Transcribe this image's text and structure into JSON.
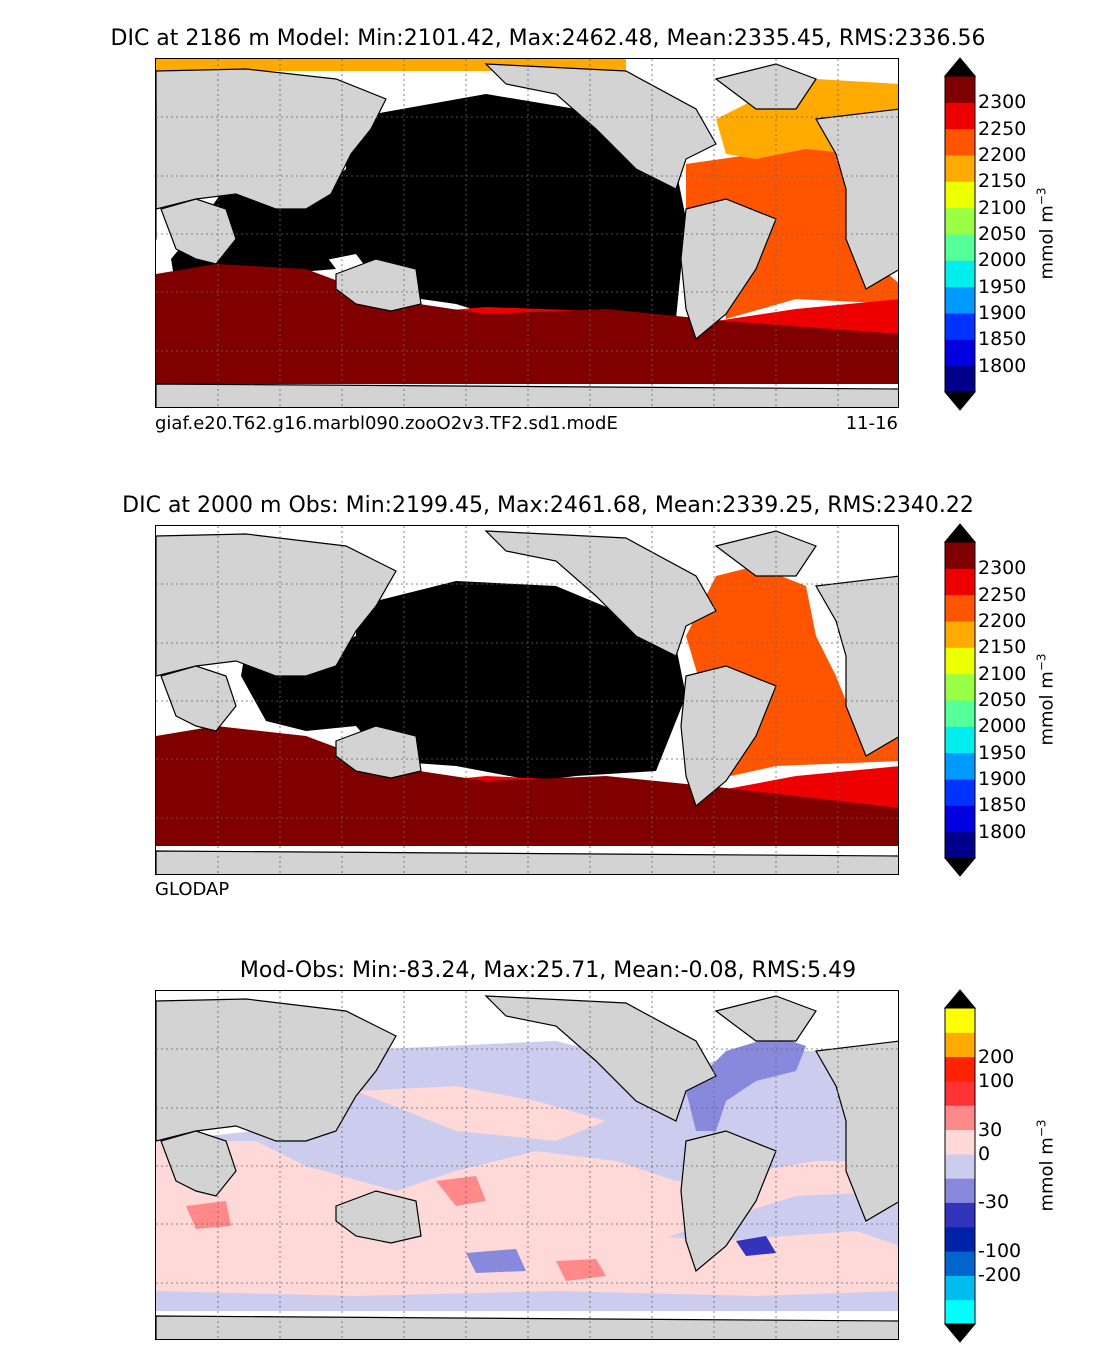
{
  "panels": [
    {
      "title": "DIC at 2186 m Model: Min:2101.42, Max:2462.48, Mean:2335.45, RMS:2336.56",
      "caption_left": "giaf.e20.T62.g16.marbl090.zooO2v3.TF2.sd1.modE",
      "caption_right": "11-16",
      "colorbar": {
        "unit": "mmol m^-3",
        "ticks": [
          "1800",
          "1850",
          "1900",
          "1950",
          "2000",
          "2050",
          "2100",
          "2150",
          "2200",
          "2250",
          "2300"
        ],
        "colors": [
          "#00008b",
          "#0000e0",
          "#0033ff",
          "#0099ff",
          "#00eeee",
          "#55ff99",
          "#99ff44",
          "#eeff00",
          "#ffaa00",
          "#ff5500",
          "#ee0000",
          "#800000"
        ],
        "under": "#000000",
        "over": "#000000"
      }
    },
    {
      "title": "DIC at 2000 m Obs: Min:2199.45, Max:2461.68, Mean:2339.25, RMS:2340.22",
      "caption_left": "GLODAP",
      "caption_right": "",
      "colorbar": {
        "unit": "mmol m^-3",
        "ticks": [
          "1800",
          "1850",
          "1900",
          "1950",
          "2000",
          "2050",
          "2100",
          "2150",
          "2200",
          "2250",
          "2300"
        ],
        "colors": [
          "#00008b",
          "#0000e0",
          "#0033ff",
          "#0099ff",
          "#00eeee",
          "#55ff99",
          "#99ff44",
          "#eeff00",
          "#ffaa00",
          "#ff5500",
          "#ee0000",
          "#800000"
        ],
        "under": "#000000",
        "over": "#000000"
      }
    },
    {
      "title": "Mod-Obs: Min:-83.24, Max:25.71, Mean:-0.08, RMS:5.49",
      "caption_left": "",
      "caption_right": "",
      "colorbar": {
        "unit": "mmol m^-3",
        "ticks": [
          "-200",
          "-100",
          "-30",
          "0",
          "30",
          "100",
          "200"
        ],
        "colors": [
          "#00ffff",
          "#00bbee",
          "#0066cc",
          "#0022aa",
          "#3333bb",
          "#8888dd",
          "#ccccee",
          "#ffd8d8",
          "#ff8888",
          "#ff3333",
          "#ff2200",
          "#ffaa00",
          "#ffff00"
        ],
        "under": "#000000",
        "over": "#000000"
      }
    }
  ],
  "map_colors": {
    "land": "#d3d3d3",
    "nodata": "#ffffff",
    "pacific_deep": "#000000",
    "southern_ocean": "#800000",
    "southern_band": "#ee0000",
    "atlantic": "#ff5500",
    "north_atlantic": "#ffaa00",
    "diff_pos": "#ffd8d8",
    "diff_neg": "#ccccee",
    "diff_strong_pos": "#ff8888",
    "diff_strong_neg": "#8888dd"
  }
}
